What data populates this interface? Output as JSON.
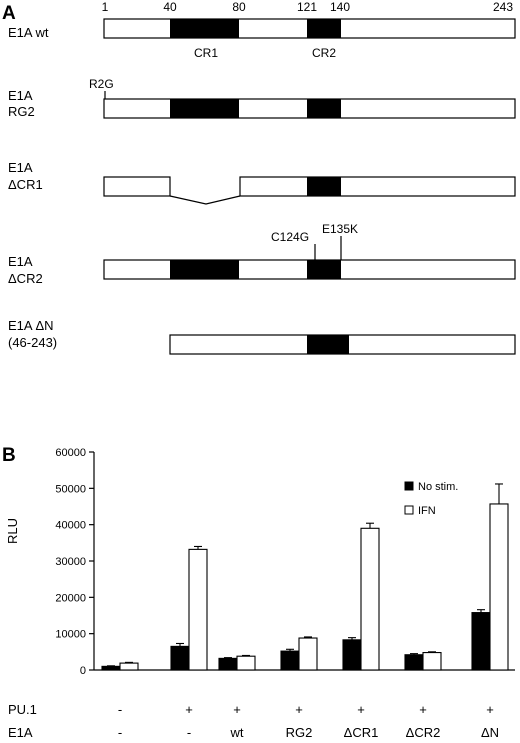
{
  "panel_a": {
    "letter": "A",
    "positions": [
      "1",
      "40",
      "80",
      "121",
      "140",
      "243"
    ],
    "domain_labels": [
      "CR1",
      "CR2"
    ],
    "constructs": [
      {
        "id": "wt",
        "label_lines": [
          "E1A wt"
        ]
      },
      {
        "id": "rg2",
        "label_lines": [
          "E1A",
          "RG2"
        ],
        "mutations": [
          "R2G"
        ]
      },
      {
        "id": "dcr1",
        "label_lines": [
          "E1A",
          "ΔCR1"
        ]
      },
      {
        "id": "dcr2",
        "label_lines": [
          "E1A",
          "ΔCR2"
        ],
        "mutations": [
          "C124G",
          "E135K"
        ]
      },
      {
        "id": "dn",
        "label_lines": [
          "E1A ΔN",
          "(46-243)"
        ]
      }
    ],
    "colors": {
      "domain_fill": "#000000",
      "box_fill": "#ffffff",
      "outline": "#000000"
    }
  },
  "panel_b": {
    "letter": "B",
    "row_labels": [
      "PU.1",
      "E1A"
    ],
    "chart_data": {
      "type": "bar",
      "ylabel": "RLU",
      "ylim": [
        0,
        60000
      ],
      "yticks": [
        "0",
        "10000",
        "20000",
        "30000",
        "40000",
        "50000",
        "60000"
      ],
      "legend_position": "top-right",
      "conditions": [
        {
          "pu1": "-",
          "e1a": "-"
        },
        {
          "pu1": "+",
          "e1a": "-"
        },
        {
          "pu1": "+",
          "e1a": "wt"
        },
        {
          "pu1": "+",
          "e1a": "RG2"
        },
        {
          "pu1": "+",
          "e1a": "ΔCR1"
        },
        {
          "pu1": "+",
          "e1a": "ΔCR2"
        },
        {
          "pu1": "+",
          "e1a": "ΔN"
        }
      ],
      "series": [
        {
          "name": "No stim.",
          "color": "#000000",
          "values": [
            1000,
            6500,
            3200,
            5200,
            8300,
            4200,
            15800
          ],
          "errors": [
            150,
            800,
            200,
            500,
            600,
            300,
            800
          ]
        },
        {
          "name": "IFN",
          "color": "#ffffff",
          "values": [
            1900,
            33200,
            3800,
            8800,
            39000,
            4800,
            45700
          ],
          "errors": [
            200,
            800,
            200,
            300,
            1400,
            200,
            5500
          ]
        }
      ]
    }
  }
}
